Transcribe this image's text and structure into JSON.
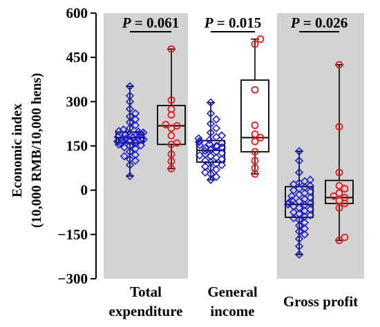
{
  "chart_data": {
    "type": "box",
    "ylabel_line1": "Economic index",
    "ylabel_line2": "(10,000 RMB/10,000 hens)",
    "ylim": [
      -300,
      600
    ],
    "yticks": [
      "600",
      "450",
      "300",
      "150",
      "0",
      "−150",
      "−300"
    ],
    "ytick_values": [
      600,
      450,
      300,
      150,
      0,
      -150,
      -300
    ],
    "categories": [
      {
        "line1": "Total",
        "line2": "expenditure"
      },
      {
        "line1": "General",
        "line2": "income"
      },
      {
        "line1": "Gross profit",
        "line2": ""
      }
    ],
    "shaded_categories": [
      0,
      2
    ],
    "shade_color": "#d3d3d3",
    "series_colors": {
      "blue": "#1c1ccc",
      "red": "#e8161b"
    },
    "comparisons": [
      {
        "category": 0,
        "p_prefix": "P",
        "p_rest": " = 0.061"
      },
      {
        "category": 1,
        "p_prefix": "P",
        "p_rest": " = 0.015"
      },
      {
        "category": 2,
        "p_prefix": "P",
        "p_rest": " = 0.026"
      }
    ],
    "groups": [
      {
        "category": 0,
        "marker": "diamond",
        "color": "blue",
        "min": 48,
        "q1": 160,
        "median": 178,
        "q3": 197,
        "max": 352,
        "points": [
          48,
          85,
          100,
          105,
          115,
          120,
          130,
          140,
          145,
          150,
          152,
          155,
          158,
          160,
          162,
          165,
          167,
          170,
          172,
          174,
          176,
          178,
          180,
          182,
          184,
          186,
          188,
          190,
          192,
          195,
          198,
          200,
          205,
          210,
          220,
          230,
          240,
          250,
          260,
          275,
          300,
          320,
          352
        ]
      },
      {
        "category": 0,
        "marker": "circle",
        "color": "red",
        "min": 73,
        "q1": 155,
        "median": 218,
        "q3": 287,
        "max": 478,
        "points": [
          73,
          98,
          122,
          155,
          160,
          185,
          210,
          218,
          222,
          255,
          275,
          305,
          478
        ]
      },
      {
        "category": 1,
        "marker": "diamond",
        "color": "blue",
        "min": 35,
        "q1": 95,
        "median": 135,
        "q3": 168,
        "max": 297,
        "points": [
          35,
          45,
          55,
          60,
          70,
          75,
          80,
          85,
          90,
          95,
          100,
          105,
          110,
          115,
          118,
          122,
          126,
          130,
          133,
          136,
          140,
          142,
          145,
          148,
          150,
          153,
          156,
          160,
          163,
          166,
          170,
          175,
          180,
          185,
          195,
          210,
          225,
          240,
          260,
          297
        ]
      },
      {
        "category": 1,
        "marker": "circle",
        "color": "red",
        "min": 55,
        "q1": 130,
        "median": 178,
        "q3": 373,
        "max": 512,
        "points": [
          55,
          75,
          100,
          130,
          165,
          178,
          190,
          220,
          340,
          495,
          512
        ]
      },
      {
        "category": 2,
        "marker": "diamond",
        "color": "blue",
        "min": -218,
        "q1": -92,
        "median": -48,
        "q3": 12,
        "max": 132,
        "points": [
          -218,
          -190,
          -165,
          -150,
          -140,
          -130,
          -120,
          -110,
          -100,
          -95,
          -90,
          -85,
          -80,
          -75,
          -70,
          -65,
          -60,
          -55,
          -50,
          -48,
          -45,
          -42,
          -38,
          -35,
          -30,
          -25,
          -20,
          -15,
          -10,
          -5,
          0,
          5,
          10,
          15,
          20,
          25,
          30,
          35,
          60,
          100,
          132
        ]
      },
      {
        "category": 2,
        "marker": "circle",
        "color": "red",
        "min": -170,
        "q1": -45,
        "median": -25,
        "q3": 33,
        "max": 425,
        "points": [
          -170,
          -160,
          -60,
          -45,
          -35,
          -25,
          -20,
          -10,
          5,
          15,
          60,
          215,
          425
        ]
      }
    ]
  }
}
